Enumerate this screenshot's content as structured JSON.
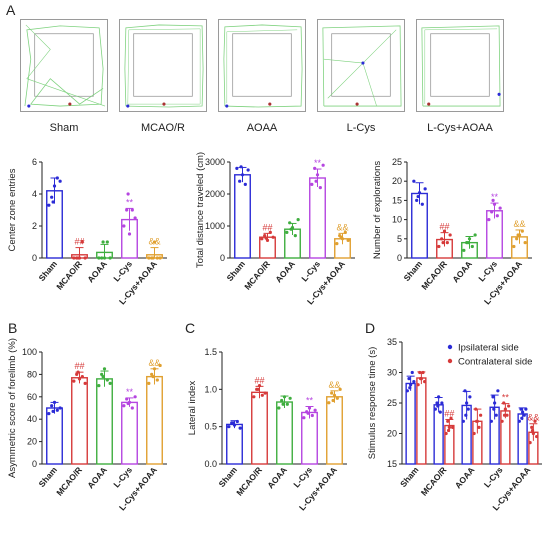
{
  "panel_labels": {
    "A": "A",
    "B": "B",
    "C": "C",
    "D": "D"
  },
  "tracks": [
    {
      "label": "Sham"
    },
    {
      "label": "MCAO/R"
    },
    {
      "label": "AOAA"
    },
    {
      "label": "L-Cys"
    },
    {
      "label": "L-Cys+AOAA"
    }
  ],
  "colors": {
    "Sham": "#2b2bd6",
    "MCAO/R": "#d63a3a",
    "AOAA": "#3fae3f",
    "L-Cys": "#b545e0",
    "L-Cys+AOAA": "#e0a030",
    "Ipsilateral": "#2b2bd6",
    "Contralateral": "#d63a3a",
    "track_line": "#7fd27f"
  },
  "chart_data": [
    {
      "id": "center",
      "type": "bar",
      "ylabel": "Center zone entries",
      "ylim": [
        0,
        6
      ],
      "yticks": [
        "0",
        "2",
        "4",
        "6"
      ],
      "categories": [
        "Sham",
        "MCAO/R",
        "AOAA",
        "L-Cys",
        "L-Cys+AOAA"
      ],
      "values": [
        4.2,
        0.2,
        0.35,
        2.4,
        0.2
      ],
      "errors": [
        0.8,
        0.45,
        0.5,
        0.7,
        0.45
      ],
      "points": [
        [
          3.3,
          3.8,
          4.5,
          5.0,
          4.8,
          3.5
        ],
        [
          0,
          0,
          0,
          1,
          0,
          0
        ],
        [
          0,
          0,
          0,
          1,
          0,
          1
        ],
        [
          2,
          3,
          1.5,
          3,
          2.5,
          4
        ],
        [
          0,
          0,
          1,
          0,
          0,
          0
        ]
      ],
      "annotations": [
        {
          "i": 1,
          "text": "##"
        },
        {
          "i": 3,
          "text": "**"
        },
        {
          "i": 4,
          "text": "&&"
        }
      ]
    },
    {
      "id": "distance",
      "type": "bar",
      "ylabel": "Total distance traveled (cm)",
      "ylim": [
        0,
        3000
      ],
      "yticks": [
        "0",
        "1000",
        "2000",
        "3000"
      ],
      "categories": [
        "Sham",
        "MCAO/R",
        "AOAA",
        "L-Cys",
        "L-Cys+AOAA"
      ],
      "values": [
        2600,
        650,
        900,
        2500,
        600
      ],
      "errors": [
        230,
        120,
        180,
        280,
        170
      ],
      "points": [
        [
          2800,
          2400,
          2600,
          2300,
          2750,
          2850
        ],
        [
          600,
          700,
          550,
          800,
          650,
          620
        ],
        [
          800,
          1100,
          950,
          700,
          1200,
          900
        ],
        [
          2300,
          2800,
          2600,
          2200,
          2900,
          2400
        ],
        [
          450,
          700,
          600,
          800,
          550,
          650
        ]
      ],
      "annotations": [
        {
          "i": 1,
          "text": "##"
        },
        {
          "i": 3,
          "text": "**"
        },
        {
          "i": 4,
          "text": "&&"
        }
      ]
    },
    {
      "id": "explorations",
      "type": "bar",
      "ylabel": "Number of explorations",
      "ylim": [
        0,
        25
      ],
      "yticks": [
        "0",
        "5",
        "10",
        "15",
        "20",
        "25"
      ],
      "categories": [
        "Sham",
        "MCAO/R",
        "AOAA",
        "L-Cys",
        "L-Cys+AOAA"
      ],
      "values": [
        16.8,
        4.8,
        4.0,
        12.3,
        5.5
      ],
      "errors": [
        2.8,
        1.8,
        1.6,
        2.0,
        1.8
      ],
      "points": [
        [
          20,
          15,
          17,
          14,
          18,
          16
        ],
        [
          3,
          5,
          7,
          4,
          6,
          4
        ],
        [
          2,
          4,
          5,
          3,
          6,
          4
        ],
        [
          10,
          12,
          14,
          11,
          13,
          15
        ],
        [
          3,
          5,
          6,
          7,
          4,
          6
        ]
      ],
      "annotations": [
        {
          "i": 1,
          "text": "##"
        },
        {
          "i": 3,
          "text": "**"
        },
        {
          "i": 4,
          "text": "&&"
        }
      ]
    },
    {
      "id": "asym",
      "type": "bar",
      "ylabel": "Asymmetric score of forelimb (%)",
      "ylim": [
        0,
        100
      ],
      "yticks": [
        "0",
        "20",
        "40",
        "60",
        "80",
        "100"
      ],
      "categories": [
        "Sham",
        "MCAO/R",
        "AOAA",
        "L-Cys",
        "L-Cys+AOAA"
      ],
      "values": [
        50,
        77,
        76,
        55,
        78
      ],
      "errors": [
        5,
        5,
        7,
        4,
        7
      ],
      "points": [
        [
          45,
          52,
          55,
          48,
          50,
          47
        ],
        [
          74,
          80,
          76,
          78,
          72,
          82
        ],
        [
          70,
          80,
          85,
          75,
          72,
          78
        ],
        [
          52,
          58,
          55,
          50,
          60,
          54
        ],
        [
          72,
          80,
          85,
          75,
          88,
          78
        ]
      ],
      "annotations": [
        {
          "i": 1,
          "text": "##"
        },
        {
          "i": 3,
          "text": "**"
        },
        {
          "i": 4,
          "text": "&&"
        }
      ]
    },
    {
      "id": "lateral",
      "type": "bar",
      "ylabel": "Lateral index",
      "ylim": [
        0,
        1.5
      ],
      "yticks": [
        "0.0",
        "0.5",
        "1.0",
        "1.5"
      ],
      "categories": [
        "Sham",
        "MCAO/R",
        "AOAA",
        "L-Cys",
        "L-Cys+AOAA"
      ],
      "values": [
        0.53,
        0.96,
        0.83,
        0.69,
        0.9
      ],
      "errors": [
        0.05,
        0.08,
        0.08,
        0.08,
        0.08
      ],
      "points": [
        [
          0.5,
          0.55,
          0.52,
          0.57,
          0.48,
          0.55
        ],
        [
          0.9,
          1.0,
          1.05,
          0.92,
          0.95,
          1.0
        ],
        [
          0.75,
          0.85,
          0.9,
          0.8,
          0.88,
          0.8
        ],
        [
          0.62,
          0.7,
          0.75,
          0.65,
          0.72,
          0.68
        ],
        [
          0.82,
          0.95,
          0.92,
          0.88,
          1.0,
          0.85
        ]
      ],
      "annotations": [
        {
          "i": 1,
          "text": "##"
        },
        {
          "i": 3,
          "text": "**"
        },
        {
          "i": 4,
          "text": "&&"
        }
      ]
    },
    {
      "id": "stimulus",
      "type": "bar",
      "ylabel": "Stimulus response time (s)",
      "ylim": [
        15,
        35
      ],
      "yticks": [
        "15",
        "20",
        "25",
        "30",
        "35"
      ],
      "categories": [
        "Sham",
        "MCAO/R",
        "AOAA",
        "L-Cys",
        "L-Cys+AOAA"
      ],
      "series": [
        {
          "name": "Ipsilateral side",
          "values": [
            28.2,
            24.7,
            24.6,
            24.3,
            23.2
          ],
          "errors": [
            1.2,
            1.2,
            2.3,
            2.0,
            1.0
          ],
          "points": [
            [
              27,
              29,
              28,
              30,
              28.5,
              27.5
            ],
            [
              24,
              25,
              26,
              23.5,
              25,
              24.5
            ],
            [
              22,
              27,
              25,
              24,
              26,
              23
            ],
            [
              22,
              26,
              25,
              23,
              27,
              24
            ],
            [
              22,
              24,
              23.5,
              23,
              24,
              22.5
            ]
          ]
        },
        {
          "name": "Contralateral side",
          "values": [
            29.1,
            21.3,
            22.0,
            23.7,
            20.2
          ],
          "errors": [
            1.0,
            1.0,
            2.0,
            1.2,
            1.4
          ],
          "points": [
            [
              28,
              30,
              29,
              30,
              28.5,
              29
            ],
            [
              20,
              22,
              21,
              22.5,
              21,
              20.5
            ],
            [
              20,
              24,
              22,
              21,
              23,
              22
            ],
            [
              22,
              25,
              24,
              23,
              24.5,
              23
            ],
            [
              18.5,
              21,
              20,
              22,
              19.5,
              20.5
            ]
          ]
        }
      ],
      "annotations": [
        {
          "i": 1,
          "s": 1,
          "text": "##"
        },
        {
          "i": 3,
          "s": 1,
          "text": "**"
        },
        {
          "i": 4,
          "s": 1,
          "text": "&&"
        }
      ]
    }
  ]
}
